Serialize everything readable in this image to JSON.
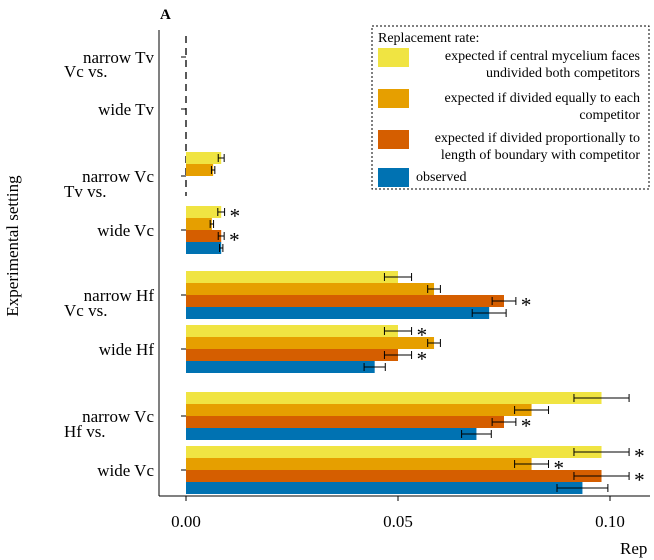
{
  "chart_data": {
    "type": "bar",
    "orientation": "horizontal",
    "panel_label": "A",
    "xlabel": "Rep",
    "ylabel": "Experimental setting",
    "xlim": [
      0,
      0.1
    ],
    "x_ticks": [
      {
        "value": 0.0,
        "label": "0.00"
      },
      {
        "value": 0.05,
        "label": "0.05"
      },
      {
        "value": 0.1,
        "label": "0.10"
      }
    ],
    "grid": false,
    "legend": {
      "title": "Replacement rate:",
      "position": "top-right",
      "entries": [
        {
          "lines": [
            "expected if central mycelium faces",
            "undivided both competitors"
          ],
          "color": "#F0E442"
        },
        {
          "lines": [
            "expected if divided equally to each",
            "competitor"
          ],
          "color": "#E69F00"
        },
        {
          "lines": [
            "expected if divided proportionally to",
            "length of boundary with competitor"
          ],
          "color": "#D55E00"
        },
        {
          "lines": [
            "observed"
          ],
          "color": "#0072B2"
        }
      ]
    },
    "series": [
      {
        "name": "expected if central mycelium faces undivided both competitors",
        "color": "#F0E442"
      },
      {
        "name": "expected if divided equally to each competitor",
        "color": "#E69F00"
      },
      {
        "name": "expected if divided proportionally to length of boundary with competitor",
        "color": "#D55E00"
      },
      {
        "name": "observed",
        "color": "#0072B2"
      }
    ],
    "groups": [
      {
        "label": "Vc vs.",
        "settings": [
          {
            "label": "narrow Tv",
            "bars": []
          },
          {
            "label": "wide Tv",
            "bars": []
          }
        ]
      },
      {
        "label": "Tv vs.",
        "settings": [
          {
            "label": "narrow Vc",
            "bars": [
              {
                "series": 0,
                "value": 0.0083,
                "err": 0.0007,
                "sig": false
              },
              {
                "series": 1,
                "value": 0.0064,
                "err": 0.0004,
                "sig": false
              }
            ]
          },
          {
            "label": "wide Vc",
            "bars": [
              {
                "series": 0,
                "value": 0.0083,
                "err": 0.0008,
                "sig": true
              },
              {
                "series": 1,
                "value": 0.0061,
                "err": 0.0004,
                "sig": false
              },
              {
                "series": 2,
                "value": 0.0083,
                "err": 0.0007,
                "sig": true
              },
              {
                "series": 3,
                "value": 0.0083,
                "err": 0.0004,
                "sig": false
              }
            ]
          }
        ]
      },
      {
        "label": "Vc vs.",
        "settings": [
          {
            "label": "narrow Hf",
            "bars": [
              {
                "series": 0,
                "value": 0.05,
                "err": 0.0032,
                "sig": false
              },
              {
                "series": 1,
                "value": 0.0585,
                "err": 0.0015,
                "sig": false
              },
              {
                "series": 2,
                "value": 0.075,
                "err": 0.0028,
                "sig": true
              },
              {
                "series": 3,
                "value": 0.0715,
                "err": 0.004,
                "sig": false
              }
            ]
          },
          {
            "label": "wide Hf",
            "bars": [
              {
                "series": 0,
                "value": 0.05,
                "err": 0.0032,
                "sig": true
              },
              {
                "series": 1,
                "value": 0.0585,
                "err": 0.0015,
                "sig": false
              },
              {
                "series": 2,
                "value": 0.05,
                "err": 0.0032,
                "sig": true
              },
              {
                "series": 3,
                "value": 0.0445,
                "err": 0.0025,
                "sig": false
              }
            ]
          }
        ]
      },
      {
        "label": "Hf vs.",
        "settings": [
          {
            "label": "narrow Vc",
            "bars": [
              {
                "series": 0,
                "value": 0.098,
                "err": 0.0065,
                "sig": false
              },
              {
                "series": 1,
                "value": 0.0815,
                "err": 0.004,
                "sig": false
              },
              {
                "series": 2,
                "value": 0.075,
                "err": 0.0028,
                "sig": true
              },
              {
                "series": 3,
                "value": 0.0685,
                "err": 0.0035,
                "sig": false
              }
            ]
          },
          {
            "label": "wide Vc",
            "bars": [
              {
                "series": 0,
                "value": 0.098,
                "err": 0.0065,
                "sig": true
              },
              {
                "series": 1,
                "value": 0.0815,
                "err": 0.004,
                "sig": true
              },
              {
                "series": 2,
                "value": 0.098,
                "err": 0.0065,
                "sig": true
              },
              {
                "series": 3,
                "value": 0.0935,
                "err": 0.006,
                "sig": false
              }
            ]
          }
        ]
      }
    ],
    "significance_marker": "*",
    "reference_line": {
      "x": 0,
      "style": "dashed",
      "spans_groups": [
        0,
        1
      ]
    }
  }
}
